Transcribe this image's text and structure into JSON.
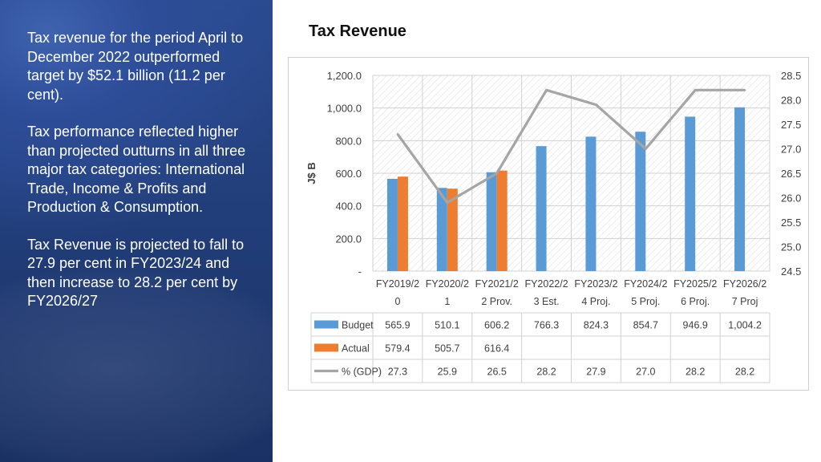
{
  "left_text": {
    "p1": "Tax revenue for the period April to December 2022 outperformed target by $52.1 billion (11.2 per cent).",
    "p2": "Tax  performance reflected higher than projected outturns in all three major tax categories: International Trade, Income & Profits and Production & Consumption.",
    "p3": "Tax Revenue is projected to fall to 27.9 per cent in FY2023/24 and then increase to 28.2 per cent by FY2026/27"
  },
  "chart_data": {
    "type": "bar",
    "title": "Tax Revenue",
    "ylabel": "J$ B",
    "y2label": "",
    "categories": [
      [
        "FY2019/2",
        "0"
      ],
      [
        "FY2020/2",
        "1"
      ],
      [
        "FY2021/2",
        "2 Prov."
      ],
      [
        "FY2022/2",
        "3 Est."
      ],
      [
        "FY2023/2",
        "4 Proj."
      ],
      [
        "FY2024/2",
        "5 Proj."
      ],
      [
        "FY2025/2",
        "6 Proj."
      ],
      [
        "FY2026/2",
        "7 Proj"
      ]
    ],
    "ylim": [
      0,
      1200
    ],
    "yticks": [
      "-",
      "200.0",
      "400.0",
      "600.0",
      "800.0",
      "1,000.0",
      "1,200.0"
    ],
    "y2lim": [
      24.5,
      28.5
    ],
    "y2ticks": [
      "24.5",
      "25.0",
      "25.5",
      "26.0",
      "26.5",
      "27.0",
      "27.5",
      "28.0",
      "28.5"
    ],
    "series": [
      {
        "name": "Budget",
        "kind": "bar",
        "color": "#5b9bd5",
        "values": [
          565.9,
          510.1,
          606.2,
          766.3,
          824.3,
          854.7,
          946.9,
          1004.2
        ],
        "labels": [
          "565.9",
          "510.1",
          "606.2",
          "766.3",
          "824.3",
          "854.7",
          "946.9",
          "1,004.2"
        ]
      },
      {
        "name": "Actual",
        "kind": "bar",
        "color": "#ed7d31",
        "values": [
          579.4,
          505.7,
          616.4,
          null,
          null,
          null,
          null,
          null
        ],
        "labels": [
          "579.4",
          "505.7",
          "616.4",
          "",
          "",
          "",
          "",
          ""
        ]
      },
      {
        "name": "% (GDP)",
        "kind": "line",
        "axis": "secondary",
        "color": "#a5a5a5",
        "values": [
          27.3,
          25.9,
          26.5,
          28.2,
          27.9,
          27.0,
          28.2,
          28.2
        ],
        "labels": [
          "27.3",
          "25.9",
          "26.5",
          "28.2",
          "27.9",
          "27.0",
          "28.2",
          "28.2"
        ]
      }
    ],
    "grid": true,
    "legend": "data-table"
  }
}
